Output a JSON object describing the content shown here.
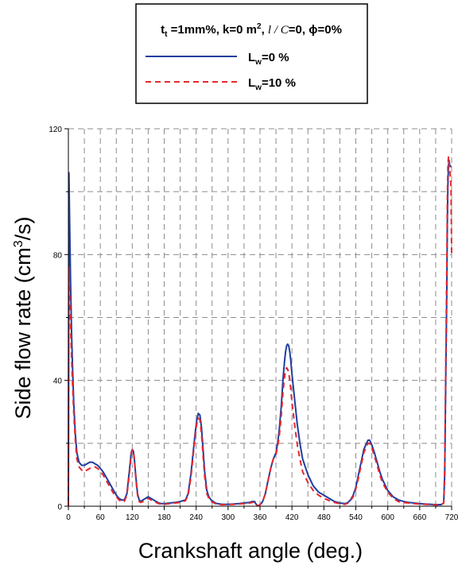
{
  "chart_data": {
    "type": "line",
    "legend": {
      "header_parts": {
        "t": "t",
        "t_sub": "t",
        "after_t": " =1mm%, k=0 m",
        "sup": "2",
        "after_sup": ",  ",
        "l": "l",
        "slash": " / ",
        "c": "C",
        "tail": "=0, ϕ=0%"
      },
      "placement": "top-center",
      "entries": [
        {
          "pre": "L",
          "sub": "w",
          "post": "=0 %"
        },
        {
          "pre": "L",
          "sub": "w",
          "post": "=10 %"
        }
      ]
    },
    "xlabel": "Crankshaft angle (deg.)",
    "ylabel": "Side flow rate",
    "ylabel_unit": {
      "pre": "(cm",
      "sup": "3",
      "post": "/s)"
    },
    "xlim": [
      0,
      720
    ],
    "ylim": [
      0,
      120
    ],
    "x_ticks": [
      0,
      60,
      120,
      180,
      240,
      300,
      360,
      420,
      480,
      540,
      600,
      660,
      720
    ],
    "x_tick_labels": [
      "0",
      "60",
      "120",
      "180",
      "240",
      "300",
      "360",
      "420",
      "480",
      "540",
      "600",
      "660",
      "720"
    ],
    "y_ticks": [
      0,
      40,
      80,
      120
    ],
    "y_tick_labels": [
      "0",
      "40",
      "80",
      "120"
    ],
    "grid": true,
    "grid_x_step": 30,
    "grid_y_step": 20,
    "series": [
      {
        "name": "Lw=0 %",
        "color": "#1f3f9f",
        "dash": "solid",
        "x": [
          0,
          1,
          2,
          4,
          6,
          8,
          10,
          13,
          16,
          20,
          25,
          30,
          35,
          40,
          45,
          50,
          55,
          60,
          65,
          70,
          75,
          80,
          85,
          90,
          95,
          100,
          105,
          110,
          115,
          118,
          120,
          122,
          124,
          126,
          128,
          130,
          133,
          136,
          140,
          145,
          150,
          155,
          160,
          165,
          170,
          175,
          180,
          190,
          200,
          210,
          220,
          225,
          230,
          235,
          238,
          241,
          244,
          247,
          250,
          253,
          256,
          260,
          264,
          268,
          272,
          276,
          280,
          285,
          290,
          300,
          310,
          320,
          330,
          340,
          345,
          350,
          352,
          355,
          358,
          360,
          362,
          365,
          370,
          375,
          380,
          385,
          390,
          393,
          396,
          400,
          403,
          406,
          408,
          410,
          412,
          414,
          416,
          418,
          420,
          425,
          430,
          435,
          440,
          450,
          460,
          470,
          480,
          490,
          500,
          510,
          520,
          525,
          530,
          535,
          540,
          545,
          550,
          555,
          560,
          563,
          566,
          570,
          575,
          580,
          585,
          590,
          600,
          610,
          620,
          630,
          640,
          650,
          660,
          670,
          680,
          690,
          700,
          705,
          707,
          709,
          711,
          712,
          713,
          714,
          715,
          716,
          717,
          718,
          719,
          720
        ],
        "y": [
          0,
          106,
          95,
          72,
          55,
          43,
          33,
          23,
          17,
          14,
          13,
          13,
          13.5,
          14,
          14,
          13.5,
          13,
          12,
          11,
          9.5,
          8,
          6.5,
          5,
          3.5,
          2.5,
          2,
          2,
          4,
          12,
          17,
          18,
          17.5,
          15,
          11,
          7,
          4,
          2,
          1.5,
          2,
          2.5,
          3,
          2.5,
          2,
          1.5,
          1,
          0.8,
          0.8,
          1,
          1.2,
          1.5,
          2,
          4,
          10,
          18,
          23,
          27,
          29.5,
          29,
          25,
          18,
          11,
          5,
          3,
          2,
          1.5,
          1,
          0.8,
          0.7,
          0.6,
          0.6,
          0.7,
          0.8,
          1,
          1.2,
          1.5,
          1.5,
          0.8,
          0.2,
          0.3,
          0.5,
          0.8,
          1.5,
          4,
          8,
          12,
          15,
          17,
          20,
          24,
          32,
          40,
          46,
          49,
          51,
          51.5,
          51,
          49,
          46,
          42,
          34,
          26,
          20,
          15,
          10,
          6.5,
          4.5,
          3.5,
          2.5,
          1.5,
          1,
          0.8,
          1.2,
          2,
          3.5,
          6,
          10,
          14,
          18,
          20,
          21,
          21,
          19.5,
          17,
          14,
          11,
          8.5,
          5,
          3,
          2,
          1.5,
          1.2,
          1,
          0.8,
          0.7,
          0.6,
          0.5,
          0.5,
          1,
          10,
          40,
          70,
          90,
          102,
          108,
          110,
          109,
          108,
          108,
          108,
          108
        ]
      },
      {
        "name": "Lw=10 %",
        "color": "#e8262e",
        "dash": "dashed",
        "x": [
          0,
          1,
          2,
          4,
          6,
          8,
          10,
          13,
          16,
          20,
          25,
          30,
          35,
          40,
          45,
          50,
          55,
          60,
          65,
          70,
          75,
          80,
          85,
          90,
          95,
          100,
          105,
          110,
          115,
          118,
          120,
          122,
          124,
          126,
          128,
          130,
          133,
          136,
          140,
          145,
          150,
          155,
          160,
          165,
          170,
          175,
          180,
          190,
          200,
          210,
          220,
          225,
          230,
          235,
          238,
          241,
          244,
          247,
          250,
          253,
          256,
          260,
          264,
          268,
          272,
          276,
          280,
          285,
          290,
          300,
          310,
          320,
          330,
          340,
          345,
          350,
          352,
          355,
          358,
          360,
          362,
          365,
          370,
          375,
          380,
          385,
          390,
          393,
          396,
          400,
          403,
          406,
          408,
          410,
          412,
          414,
          416,
          418,
          420,
          425,
          430,
          435,
          440,
          450,
          460,
          470,
          480,
          490,
          500,
          510,
          520,
          525,
          530,
          535,
          540,
          545,
          550,
          555,
          560,
          563,
          566,
          570,
          575,
          580,
          585,
          590,
          600,
          610,
          620,
          630,
          640,
          650,
          660,
          670,
          680,
          690,
          700,
          705,
          707,
          709,
          711,
          712,
          713,
          714,
          715,
          716,
          717,
          718,
          719,
          720
        ],
        "y": [
          0,
          76,
          70,
          58,
          47,
          38,
          30,
          21,
          15,
          12.5,
          11.5,
          11,
          11.5,
          12,
          12.5,
          12.5,
          12,
          11,
          10,
          8.5,
          7,
          5.5,
          4,
          3,
          2,
          1.5,
          1.5,
          3.5,
          11,
          16.5,
          18,
          17.5,
          15,
          10.5,
          6.5,
          3.5,
          1.5,
          1.2,
          1.5,
          2,
          2.5,
          2,
          1.5,
          1.2,
          0.8,
          0.6,
          0.6,
          0.8,
          1,
          1.2,
          1.8,
          3.5,
          9,
          17,
          22,
          26,
          28,
          27.5,
          23,
          16,
          9.5,
          4,
          2.5,
          1.5,
          1.2,
          0.8,
          0.6,
          0.5,
          0.5,
          0.5,
          0.6,
          0.7,
          0.8,
          1,
          1.2,
          1.3,
          0.6,
          0.2,
          0.3,
          0.5,
          0.8,
          1.5,
          4,
          8,
          12,
          15,
          16.5,
          19,
          22,
          29,
          36,
          41,
          43,
          44,
          43.5,
          42.5,
          40,
          37,
          33,
          26,
          19.5,
          15,
          11,
          7.5,
          5,
          3.5,
          2.5,
          1.8,
          1.2,
          0.8,
          0.6,
          1,
          1.8,
          3,
          5.5,
          9,
          13,
          17,
          19,
          20,
          20,
          18.5,
          16,
          13,
          10,
          7.5,
          4.5,
          2.5,
          1.5,
          1.2,
          1,
          0.8,
          0.7,
          0.6,
          0.5,
          0.4,
          0.4,
          1,
          12,
          45,
          78,
          98,
          108,
          111,
          110,
          108,
          106,
          104,
          100,
          80
        ]
      }
    ]
  }
}
